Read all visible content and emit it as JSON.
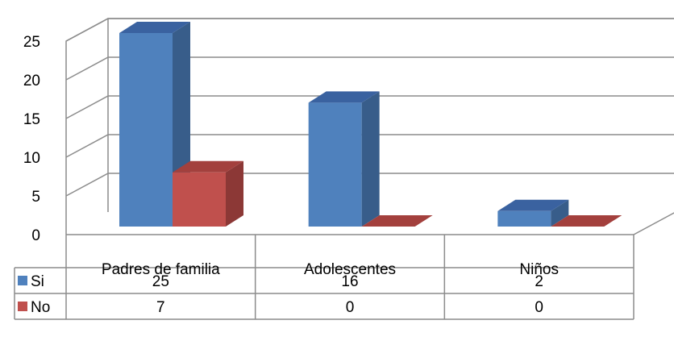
{
  "chart_data": {
    "type": "bar",
    "variant": "3d-clustered-with-data-table",
    "title": "",
    "xlabel": "",
    "ylabel": "",
    "ylim": [
      0,
      25
    ],
    "yticks": [
      "0",
      "5",
      "10",
      "15",
      "20",
      "25"
    ],
    "categories": [
      "Padres de familia",
      "Adolescentes",
      "Niños"
    ],
    "series": [
      {
        "name": "Si",
        "values": [
          25,
          16,
          2
        ],
        "color": "#4F81BD",
        "side_color": "#385D8A",
        "top_color": "#3A62A0"
      },
      {
        "name": "No",
        "values": [
          7,
          0,
          0
        ],
        "color": "#C0504D",
        "side_color": "#8C3836",
        "top_color": "#A3403D"
      }
    ],
    "data_table": {
      "rows": [
        {
          "label": "Si",
          "cells": [
            "25",
            "16",
            "2"
          ]
        },
        {
          "label": "No",
          "cells": [
            "7",
            "0",
            "0"
          ]
        }
      ]
    },
    "grid": true,
    "legend": "in-data-table"
  }
}
